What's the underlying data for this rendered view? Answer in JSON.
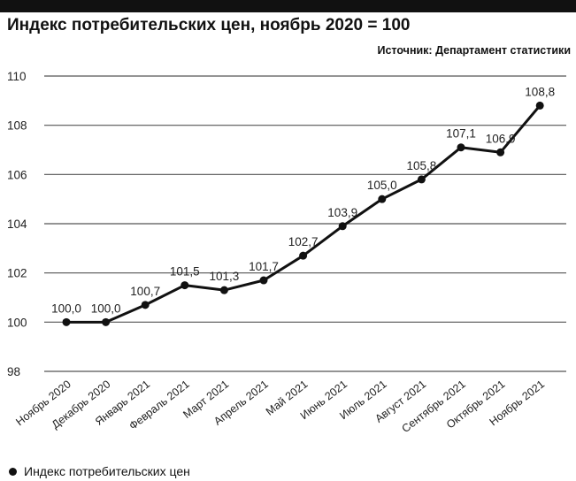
{
  "chart_data": {
    "type": "line",
    "title": "Индекс потребительских цен, ноябрь 2020 = 100",
    "source": "Источник: Департамент статистики",
    "categories": [
      "Ноябрь 2020",
      "Декабрь 2020",
      "Январь 2021",
      "Февраль 2021",
      "Март 2021",
      "Апрель 2021",
      "Май 2021",
      "Июнь 2021",
      "Июль 2021",
      "Август 2021",
      "Сентябрь 2021",
      "Октябрь 2021",
      "Ноябрь 2021"
    ],
    "series": [
      {
        "name": "Индекс потребительских цен",
        "values": [
          100.0,
          100.0,
          100.7,
          101.5,
          101.3,
          101.7,
          102.7,
          103.9,
          105.0,
          105.8,
          107.1,
          106.9,
          108.8
        ],
        "labels": [
          "100,0",
          "100,0",
          "100,7",
          "101,5",
          "101,3",
          "101,7",
          "102,7",
          "103,9",
          "105,0",
          "105,8",
          "107,1",
          "106,9",
          "108,8"
        ]
      }
    ],
    "yticks": [
      98,
      100,
      102,
      104,
      106,
      108,
      110
    ],
    "ylim": [
      98,
      110
    ],
    "grid": true,
    "legend_position": "bottom-left",
    "colors": {
      "line": "#111111",
      "grid": "#555555",
      "text": "#222222"
    }
  }
}
